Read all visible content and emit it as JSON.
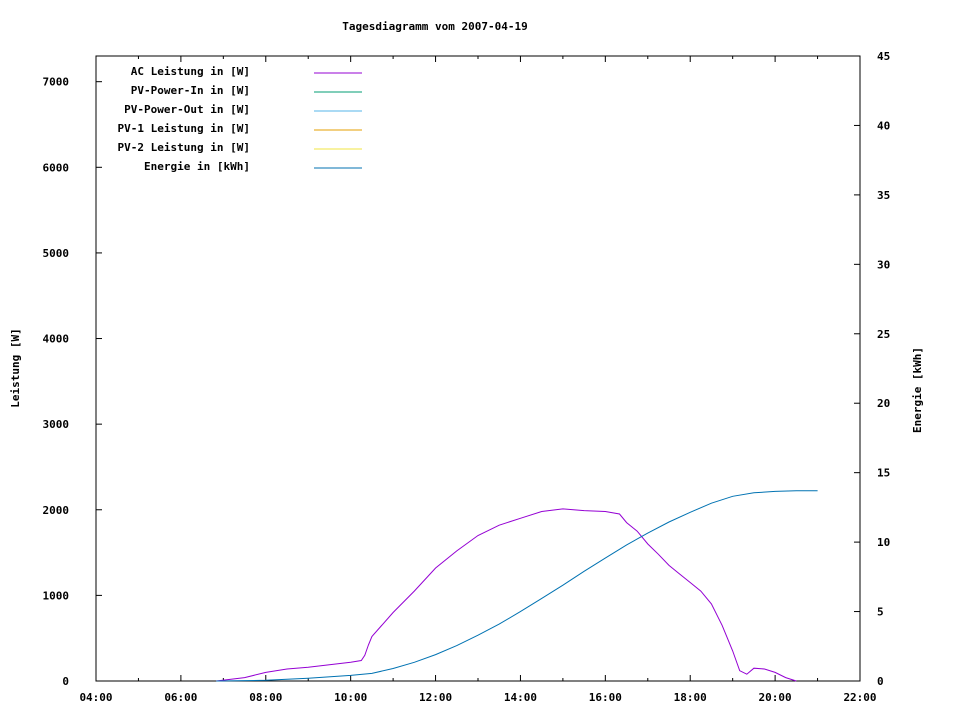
{
  "chart_data": {
    "type": "line",
    "title": "Tagesdiagramm vom 2007-04-19",
    "ylabel": "Leistung [W]",
    "y2label": "Energie [kWh]",
    "xlabel": "",
    "xlim_hours": [
      4,
      22
    ],
    "ylim": [
      0,
      7300
    ],
    "y2lim": [
      0,
      45
    ],
    "x_ticks": [
      "04:00",
      "06:00",
      "08:00",
      "10:00",
      "12:00",
      "14:00",
      "16:00",
      "18:00",
      "20:00",
      "22:00"
    ],
    "y_ticks": [
      "0",
      "1000",
      "2000",
      "3000",
      "4000",
      "5000",
      "6000",
      "7000"
    ],
    "y2_ticks": [
      "0",
      "5",
      "10",
      "15",
      "20",
      "25",
      "30",
      "35",
      "40",
      "45"
    ],
    "grid": false,
    "legend_position": "top-left",
    "series": [
      {
        "name": "AC Leistung in [W]",
        "color": "#9400d3",
        "axis": "left",
        "x": [
          "06:50",
          "07:30",
          "08:00",
          "08:30",
          "09:00",
          "09:30",
          "10:00",
          "10:15",
          "10:20",
          "10:25",
          "10:30",
          "11:00",
          "11:30",
          "12:00",
          "12:30",
          "13:00",
          "13:30",
          "14:00",
          "14:30",
          "15:00",
          "15:30",
          "16:00",
          "16:20",
          "16:30",
          "16:45",
          "17:00",
          "17:15",
          "17:30",
          "17:45",
          "18:00",
          "18:15",
          "18:30",
          "18:45",
          "19:00",
          "19:10",
          "19:20",
          "19:30",
          "19:45",
          "20:00",
          "20:15",
          "20:30"
        ],
        "values": [
          0,
          40,
          100,
          140,
          160,
          190,
          220,
          240,
          300,
          420,
          520,
          800,
          1050,
          1320,
          1520,
          1700,
          1820,
          1900,
          1980,
          2010,
          1990,
          1980,
          1950,
          1850,
          1750,
          1600,
          1480,
          1350,
          1250,
          1150,
          1050,
          900,
          650,
          350,
          120,
          80,
          150,
          140,
          100,
          40,
          0
        ]
      },
      {
        "name": "PV-Power-In in [W]",
        "color": "#009e73",
        "axis": "left",
        "x": [],
        "values": []
      },
      {
        "name": "PV-Power-Out in [W]",
        "color": "#56b4e9",
        "axis": "left",
        "x": [],
        "values": []
      },
      {
        "name": "PV-1 Leistung in [W]",
        "color": "#e69f00",
        "axis": "left",
        "x": [],
        "values": []
      },
      {
        "name": "PV-2 Leistung in [W]",
        "color": "#f0e442",
        "axis": "left",
        "x": [],
        "values": []
      },
      {
        "name": "Energie in [kWh]",
        "color": "#0072b2",
        "axis": "right",
        "x": [
          "06:50",
          "08:00",
          "09:00",
          "10:00",
          "10:30",
          "11:00",
          "11:30",
          "12:00",
          "12:30",
          "13:00",
          "13:30",
          "14:00",
          "14:30",
          "15:00",
          "15:30",
          "16:00",
          "16:30",
          "17:00",
          "17:30",
          "18:00",
          "18:30",
          "19:00",
          "19:30",
          "20:00",
          "20:30",
          "21:00"
        ],
        "values": [
          0,
          0.05,
          0.2,
          0.4,
          0.55,
          0.9,
          1.35,
          1.9,
          2.55,
          3.3,
          4.1,
          5.0,
          5.95,
          6.9,
          7.9,
          8.85,
          9.8,
          10.65,
          11.45,
          12.15,
          12.8,
          13.3,
          13.55,
          13.65,
          13.7,
          13.7
        ]
      }
    ]
  }
}
